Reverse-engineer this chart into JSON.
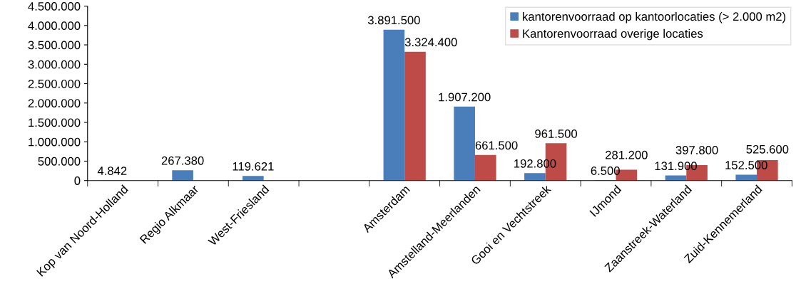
{
  "chart_data": {
    "type": "bar",
    "categories": [
      "Kop van Noord-Holland",
      "Regio Alkmaar",
      "West-Friesland",
      null,
      "Amsterdam",
      "Amstelland-Meerlanden",
      "Gooi en Vechtstreek",
      "IJmond",
      "Zaanstreek-Waterland",
      "Zuid-Kennemerland"
    ],
    "series": [
      {
        "name": "kantorenvoorraad op kantoorlocaties (> 2.000 m2)",
        "color": "#4a7ebb",
        "values": [
          4842,
          267380,
          119621,
          null,
          3891500,
          1907200,
          192800,
          6500,
          131900,
          152500
        ],
        "value_labels": [
          "4.842",
          "267.380",
          "119.621",
          null,
          "3.891.500",
          "1.907.200",
          "192.800",
          "6.500",
          "131.900",
          "152.500"
        ]
      },
      {
        "name": "Kantorenvoorraad overige locaties",
        "color": "#be4b48",
        "values": [
          null,
          null,
          null,
          null,
          3324400,
          661500,
          961500,
          281200,
          397800,
          525600
        ],
        "value_labels": [
          null,
          null,
          null,
          null,
          "3.324.400",
          "661.500",
          "961.500",
          "281.200",
          "397.800",
          "525.600"
        ]
      }
    ],
    "ylim": [
      0,
      4500000
    ],
    "yticks": [
      {
        "value": 0,
        "label": "0"
      },
      {
        "value": 500000,
        "label": "500.000"
      },
      {
        "value": 1000000,
        "label": "1.000.000"
      },
      {
        "value": 1500000,
        "label": "1.500.000"
      },
      {
        "value": 2000000,
        "label": "2.000.000"
      },
      {
        "value": 2500000,
        "label": "2.500.000"
      },
      {
        "value": 3000000,
        "label": "3.000.000"
      },
      {
        "value": 3500000,
        "label": "3.500.000"
      },
      {
        "value": 4000000,
        "label": "4.000.000"
      },
      {
        "value": 4500000,
        "label": "4.500.000"
      }
    ],
    "grid": false,
    "legend": "top right"
  }
}
